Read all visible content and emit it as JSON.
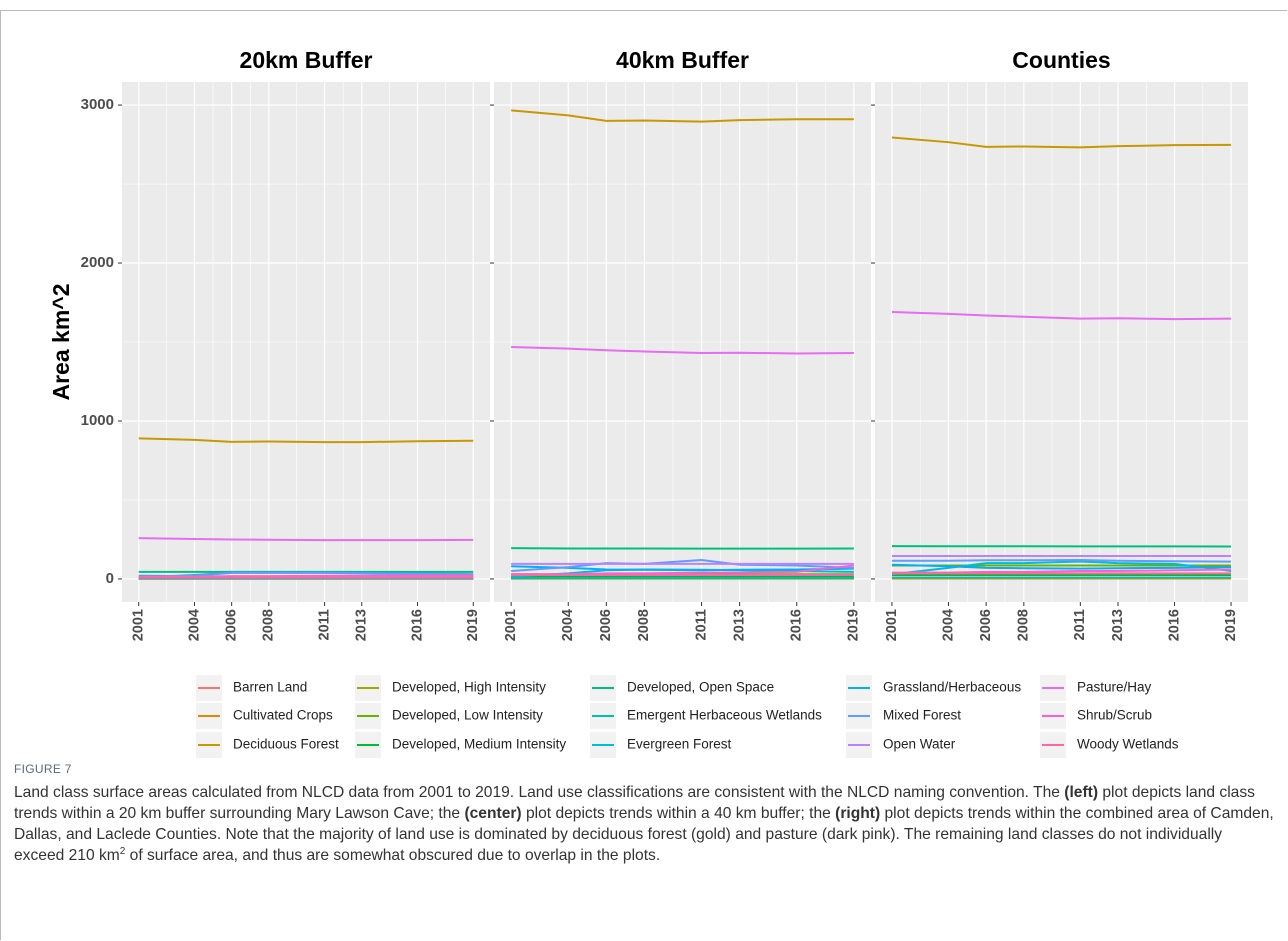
{
  "chart_data": [
    {
      "type": "line",
      "title": "20km Buffer",
      "ylabel": "Area km^2",
      "x": [
        2001,
        2004,
        2006,
        2008,
        2011,
        2013,
        2016,
        2019
      ],
      "xlim": [
        2000.1,
        2019.9
      ],
      "xticks": [
        2001,
        2004,
        2006,
        2008,
        2011,
        2013,
        2016,
        2019
      ],
      "ylim": [
        -146,
        3146
      ],
      "yticks": [
        0,
        1000,
        2000,
        3000
      ],
      "grid": true,
      "series": [
        {
          "name": "Barren Land",
          "color": "#F8766D",
          "values": [
            2,
            2,
            2,
            2,
            2,
            2,
            2,
            2
          ]
        },
        {
          "name": "Cultivated Crops",
          "color": "#E58700",
          "values": [
            1,
            1,
            1,
            1,
            1,
            1,
            1,
            1
          ]
        },
        {
          "name": "Deciduous Forest",
          "color": "#C99800",
          "values": [
            890,
            880,
            868,
            870,
            866,
            866,
            872,
            875
          ]
        },
        {
          "name": "Developed, High Intensity",
          "color": "#A3A500",
          "values": [
            3,
            3,
            3,
            3,
            3,
            3,
            3,
            3
          ]
        },
        {
          "name": "Developed, Low Intensity",
          "color": "#6BB100",
          "values": [
            12,
            12,
            12,
            12,
            12,
            12,
            12,
            12
          ]
        },
        {
          "name": "Developed, Medium Intensity",
          "color": "#00BA38",
          "values": [
            5,
            5,
            5,
            5,
            5,
            5,
            5,
            5
          ]
        },
        {
          "name": "Developed, Open Space",
          "color": "#00BF7D",
          "values": [
            45,
            45,
            45,
            45,
            45,
            45,
            45,
            45
          ]
        },
        {
          "name": "Emergent Herbaceous Wetlands",
          "color": "#00C0AF",
          "values": [
            3,
            3,
            3,
            3,
            3,
            3,
            3,
            3
          ]
        },
        {
          "name": "Evergreen Forest",
          "color": "#00BCD8",
          "values": [
            10,
            25,
            40,
            40,
            40,
            38,
            35,
            30
          ]
        },
        {
          "name": "Grassland/Herbaceous",
          "color": "#00B0F6",
          "values": [
            20,
            18,
            15,
            15,
            14,
            14,
            14,
            15
          ]
        },
        {
          "name": "Mixed Forest",
          "color": "#619CFF",
          "values": [
            15,
            20,
            38,
            38,
            38,
            35,
            32,
            30
          ]
        },
        {
          "name": "Open Water",
          "color": "#B983FF",
          "values": [
            10,
            10,
            10,
            10,
            10,
            10,
            10,
            10
          ]
        },
        {
          "name": "Pasture/Hay",
          "color": "#E76BF3",
          "values": [
            258,
            253,
            250,
            248,
            246,
            246,
            246,
            247
          ]
        },
        {
          "name": "Shrub/Scrub",
          "color": "#FD61D1",
          "values": [
            15,
            15,
            18,
            18,
            20,
            20,
            22,
            22
          ]
        },
        {
          "name": "Woody Wetlands",
          "color": "#FF67A4",
          "values": [
            8,
            8,
            8,
            8,
            8,
            8,
            8,
            8
          ]
        }
      ]
    },
    {
      "type": "line",
      "title": "40km Buffer",
      "x": [
        2001,
        2004,
        2006,
        2008,
        2011,
        2013,
        2016,
        2019
      ],
      "xlim": [
        2000.1,
        2019.9
      ],
      "xticks": [
        2001,
        2004,
        2006,
        2008,
        2011,
        2013,
        2016,
        2019
      ],
      "ylim": [
        -146,
        3146
      ],
      "yticks": [
        0,
        1000,
        2000,
        3000
      ],
      "grid": true,
      "series": [
        {
          "name": "Barren Land",
          "color": "#F8766D",
          "values": [
            3,
            3,
            3,
            3,
            3,
            3,
            3,
            3
          ]
        },
        {
          "name": "Cultivated Crops",
          "color": "#E58700",
          "values": [
            2,
            2,
            2,
            2,
            2,
            2,
            2,
            2
          ]
        },
        {
          "name": "Deciduous Forest",
          "color": "#C99800",
          "values": [
            2966,
            2935,
            2900,
            2902,
            2895,
            2905,
            2910,
            2910
          ]
        },
        {
          "name": "Developed, High Intensity",
          "color": "#A3A500",
          "values": [
            4,
            4,
            4,
            4,
            4,
            4,
            4,
            4
          ]
        },
        {
          "name": "Developed, Low Intensity",
          "color": "#6BB100",
          "values": [
            30,
            30,
            30,
            30,
            30,
            30,
            30,
            30
          ]
        },
        {
          "name": "Developed, Medium Intensity",
          "color": "#00BA38",
          "values": [
            12,
            12,
            12,
            12,
            12,
            12,
            12,
            12
          ]
        },
        {
          "name": "Developed, Open Space",
          "color": "#00BF7D",
          "values": [
            195,
            193,
            193,
            193,
            192,
            192,
            192,
            193
          ]
        },
        {
          "name": "Emergent Herbaceous Wetlands",
          "color": "#00C0AF",
          "values": [
            5,
            5,
            5,
            5,
            5,
            5,
            5,
            5
          ]
        },
        {
          "name": "Evergreen Forest",
          "color": "#00BCD8",
          "values": [
            15,
            35,
            55,
            60,
            58,
            55,
            50,
            45
          ]
        },
        {
          "name": "Grassland/Herbaceous",
          "color": "#00B0F6",
          "values": [
            80,
            70,
            60,
            58,
            55,
            58,
            60,
            65
          ]
        },
        {
          "name": "Mixed Forest",
          "color": "#619CFF",
          "values": [
            50,
            75,
            100,
            95,
            120,
            90,
            85,
            70
          ]
        },
        {
          "name": "Open Water",
          "color": "#B983FF",
          "values": [
            95,
            95,
            95,
            95,
            95,
            95,
            95,
            95
          ]
        },
        {
          "name": "Pasture/Hay",
          "color": "#E76BF3",
          "values": [
            1468,
            1458,
            1448,
            1440,
            1430,
            1432,
            1427,
            1430
          ]
        },
        {
          "name": "Shrub/Scrub",
          "color": "#FD61D1",
          "values": [
            30,
            30,
            35,
            35,
            40,
            40,
            45,
            85
          ]
        },
        {
          "name": "Woody Wetlands",
          "color": "#FF67A4",
          "values": [
            25,
            25,
            25,
            25,
            25,
            25,
            25,
            25
          ]
        }
      ]
    },
    {
      "type": "line",
      "title": "Counties",
      "x": [
        2001,
        2004,
        2006,
        2008,
        2011,
        2013,
        2016,
        2019
      ],
      "xlim": [
        2000.1,
        2019.9
      ],
      "xticks": [
        2001,
        2004,
        2006,
        2008,
        2011,
        2013,
        2016,
        2019
      ],
      "ylim": [
        -146,
        3146
      ],
      "yticks": [
        0,
        1000,
        2000,
        3000
      ],
      "grid": true,
      "series": [
        {
          "name": "Barren Land",
          "color": "#F8766D",
          "values": [
            5,
            5,
            5,
            5,
            5,
            5,
            5,
            5
          ]
        },
        {
          "name": "Cultivated Crops",
          "color": "#E58700",
          "values": [
            3,
            3,
            3,
            3,
            3,
            3,
            3,
            3
          ]
        },
        {
          "name": "Deciduous Forest",
          "color": "#C99800",
          "values": [
            2795,
            2765,
            2735,
            2738,
            2732,
            2740,
            2746,
            2748
          ]
        },
        {
          "name": "Developed, High Intensity",
          "color": "#A3A500",
          "values": [
            8,
            8,
            8,
            8,
            8,
            8,
            8,
            8
          ]
        },
        {
          "name": "Developed, Low Intensity",
          "color": "#6BB100",
          "values": [
            85,
            85,
            85,
            85,
            85,
            85,
            85,
            85
          ]
        },
        {
          "name": "Developed, Medium Intensity",
          "color": "#00BA38",
          "values": [
            25,
            25,
            25,
            25,
            25,
            25,
            25,
            25
          ]
        },
        {
          "name": "Developed, Open Space",
          "color": "#00BF7D",
          "values": [
            208,
            207,
            207,
            207,
            206,
            206,
            206,
            205
          ]
        },
        {
          "name": "Emergent Herbaceous Wetlands",
          "color": "#00C0AF",
          "values": [
            8,
            8,
            8,
            8,
            8,
            8,
            8,
            8
          ]
        },
        {
          "name": "Evergreen Forest",
          "color": "#00BCD8",
          "values": [
            30,
            70,
            100,
            100,
            110,
            100,
            95,
            50
          ]
        },
        {
          "name": "Grassland/Herbaceous",
          "color": "#00B0F6",
          "values": [
            90,
            80,
            70,
            68,
            65,
            68,
            70,
            75
          ]
        },
        {
          "name": "Mixed Forest",
          "color": "#619CFF",
          "values": [
            115,
            115,
            118,
            118,
            120,
            115,
            112,
            110
          ]
        },
        {
          "name": "Open Water",
          "color": "#B983FF",
          "values": [
            145,
            145,
            145,
            145,
            145,
            145,
            145,
            145
          ]
        },
        {
          "name": "Pasture/Hay",
          "color": "#E76BF3",
          "values": [
            1690,
            1678,
            1668,
            1660,
            1648,
            1650,
            1645,
            1648
          ]
        },
        {
          "name": "Shrub/Scrub",
          "color": "#FD61D1",
          "values": [
            40,
            40,
            45,
            45,
            50,
            50,
            55,
            60
          ]
        },
        {
          "name": "Woody Wetlands",
          "color": "#FF67A4",
          "values": [
            35,
            35,
            35,
            35,
            35,
            35,
            35,
            35
          ]
        }
      ]
    }
  ],
  "caption": {
    "label": "FIGURE 7",
    "parts": [
      {
        "text": "Land class surface areas calculated from NLCD data from 2001 to 2019. Land use classifications are consistent with the NLCD naming convention. The "
      },
      {
        "text": "(left)",
        "bold": true
      },
      {
        "text": " plot depicts land class trends within a 20 km buffer surrounding Mary Lawson Cave; the "
      },
      {
        "text": "(center)",
        "bold": true
      },
      {
        "text": " plot depicts trends within a 40 km buffer; the "
      },
      {
        "text": "(right)",
        "bold": true
      },
      {
        "text": " plot depicts trends within the combined area of Camden, Dallas, and Laclede Counties. Note that the majority of land use is dominated by deciduous forest (gold) and pasture (dark pink). The remaining land classes do not individually exceed 210 km"
      },
      {
        "text": "2",
        "sup": true
      },
      {
        "text": " of surface area, and thus are somewhat obscured due to overlap in the plots."
      }
    ]
  }
}
